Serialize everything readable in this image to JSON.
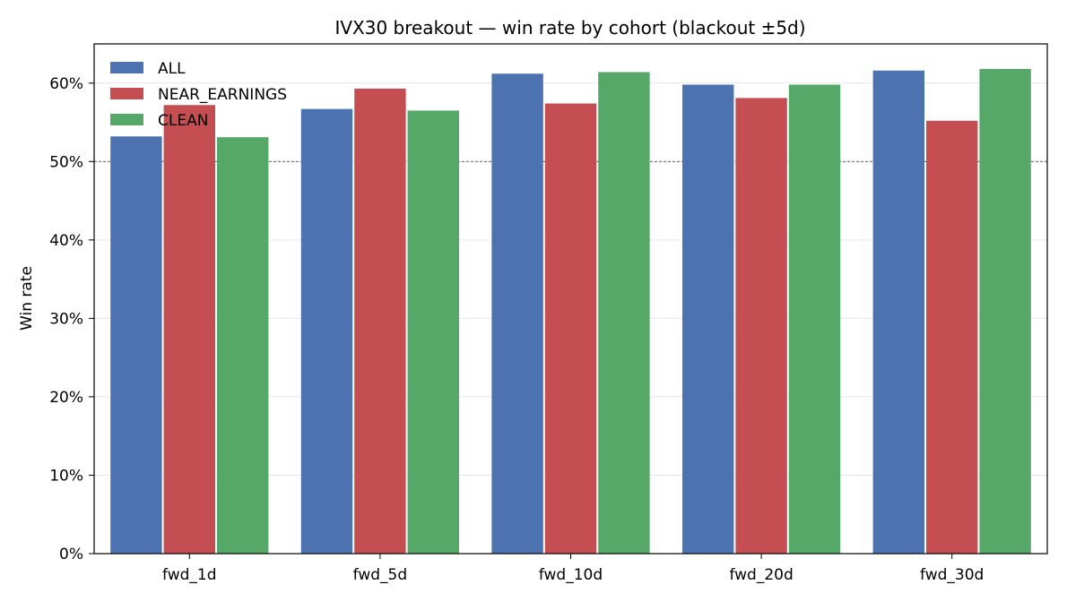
{
  "chart_data": {
    "type": "bar",
    "title": "IVX30 breakout — win rate by cohort (blackout ±5d)",
    "xlabel": "",
    "ylabel": "Win rate",
    "categories": [
      "fwd_1d",
      "fwd_5d",
      "fwd_10d",
      "fwd_20d",
      "fwd_30d"
    ],
    "series": [
      {
        "name": "ALL",
        "color": "#4c72b0",
        "values": [
          0.532,
          0.567,
          0.612,
          0.598,
          0.616
        ]
      },
      {
        "name": "NEAR_EARNINGS",
        "color": "#c44e52",
        "values": [
          0.572,
          0.593,
          0.574,
          0.581,
          0.552
        ]
      },
      {
        "name": "CLEAN",
        "color": "#55a868",
        "values": [
          0.531,
          0.565,
          0.614,
          0.598,
          0.618
        ]
      }
    ],
    "ylim": [
      0,
      0.65
    ],
    "yticks": [
      0,
      0.1,
      0.2,
      0.3,
      0.4,
      0.5,
      0.6
    ],
    "ytick_labels": [
      "0%",
      "10%",
      "20%",
      "30%",
      "40%",
      "50%",
      "60%"
    ],
    "reference_line": 0.5,
    "grid": "y",
    "legend": "top-left"
  }
}
